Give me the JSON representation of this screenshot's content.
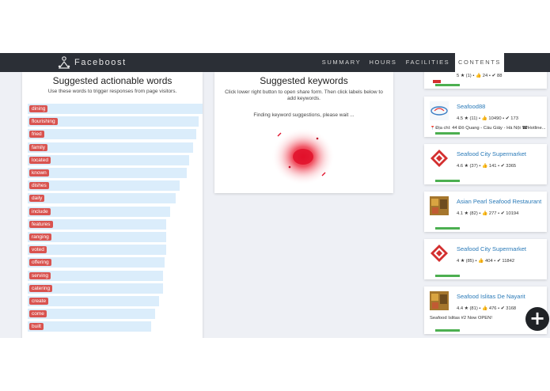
{
  "navbar": {
    "brand": "Faceboost",
    "items": [
      {
        "label": "SUMMARY"
      },
      {
        "label": "HOURS"
      },
      {
        "label": "FACILITIES"
      },
      {
        "label": "CONTENTS"
      }
    ],
    "active": "CONTENTS"
  },
  "actionable": {
    "title": "Suggested actionable words",
    "subtitle": "Use these words to trigger responses from page visitors.",
    "words": [
      {
        "word": "dining",
        "score": 1.0
      },
      {
        "word": "flourishing",
        "score": 0.91
      },
      {
        "word": "fried",
        "score": 0.9
      },
      {
        "word": "family",
        "score": 0.88
      },
      {
        "word": "located",
        "score": 0.86
      },
      {
        "word": "known",
        "score": 0.85
      },
      {
        "word": "dishes",
        "score": 0.81
      },
      {
        "word": "daily",
        "score": 0.79
      },
      {
        "word": "include",
        "score": 0.76
      },
      {
        "word": "features",
        "score": 0.74
      },
      {
        "word": "ranging",
        "score": 0.74
      },
      {
        "word": "voted",
        "score": 0.74
      },
      {
        "word": "offering",
        "score": 0.73
      },
      {
        "word": "serving",
        "score": 0.72
      },
      {
        "word": "catering",
        "score": 0.72
      },
      {
        "word": "create",
        "score": 0.7
      },
      {
        "word": "come",
        "score": 0.68
      },
      {
        "word": "built",
        "score": 0.66
      }
    ]
  },
  "keywords": {
    "title": "Suggested keywords",
    "subtitle": "Click lower right button to open share form. Then click labels below to add keywords.",
    "status": "Finding keyword suggestions, please wait ..."
  },
  "places": [
    {
      "name": "",
      "stats": "5 ★ (1) • 👍 24 • ✔ 88",
      "extra": "",
      "thumb": "partial",
      "progress": 0.2
    },
    {
      "name": "Seafood88",
      "stats": "4.5 ★ (11) • 👍 10490 • ✔ 173",
      "extra": "📍Địa chỉ: 44 Đỗ Quang - Cầu Giấy - Hà Nội ☎Hotline...",
      "thumb": "seafood88-logo",
      "progress": 0.2
    },
    {
      "name": "Seafood City Supermarket",
      "stats": "4.6 ★ (37) • 👍 141 • ✔ 3365",
      "extra": "",
      "thumb": "seafood-city-logo",
      "progress": 0.2
    },
    {
      "name": "Asian Pearl Seafood Restaurant",
      "stats": "4.1 ★ (82) • 👍 277 • ✔ 10194",
      "extra": "",
      "thumb": "restaurant-photo",
      "progress": 0.2
    },
    {
      "name": "Seafood City Supermarket",
      "stats": "4 ★ (85) • 👍 404 • ✔ 11842",
      "extra": "",
      "thumb": "seafood-city-logo",
      "progress": 0.2
    },
    {
      "name": "Seafood Islitas De Nayarit",
      "stats": "4.4 ★ (81) • 👍 476 • ✔ 3168",
      "extra": "Seafood Islitas #2 Now OPEN!",
      "thumb": "restaurant-photo",
      "progress": 0.2
    }
  ],
  "colors": {
    "navbar": "#2b2f36",
    "tag": "#d9534f",
    "bar_bg": "#dbedfb",
    "link": "#2a7ab8",
    "progress": "#4caf50"
  },
  "fab_icon": "plus-icon"
}
